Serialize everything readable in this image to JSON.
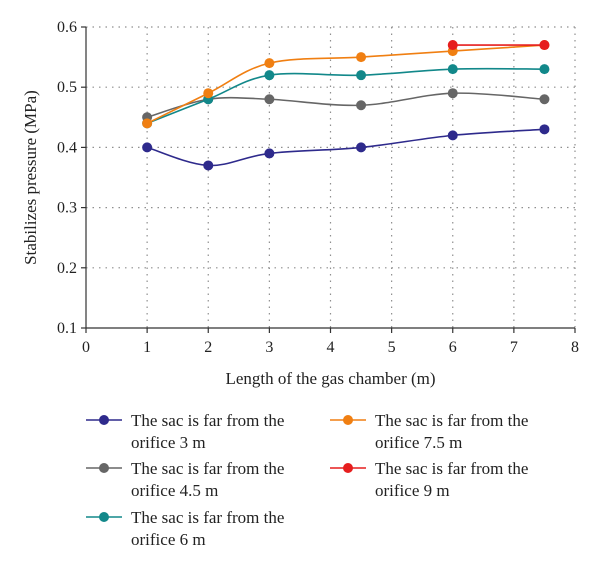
{
  "chart_data": {
    "type": "line",
    "xlabel": "Length of the gas chamber (m)",
    "ylabel": "Stabilizes pressure (MPa)",
    "xlim": [
      0,
      8
    ],
    "ylim": [
      0.1,
      0.6
    ],
    "xticks": [
      "0",
      "1",
      "2",
      "3",
      "4",
      "5",
      "6",
      "7",
      "8"
    ],
    "yticks": [
      "0.1",
      "0.2",
      "0.3",
      "0.4",
      "0.5",
      "0.6"
    ],
    "grid": true,
    "legend_position": "bottom",
    "series": [
      {
        "name": "The sac is far from the orifice 3 m",
        "color": "#2e2a8c",
        "x": [
          1,
          2,
          3,
          4.5,
          6,
          7.5
        ],
        "y": [
          0.4,
          0.37,
          0.39,
          0.4,
          0.42,
          0.43
        ]
      },
      {
        "name": "The sac is far from the orifice 4.5 m",
        "color": "#666666",
        "x": [
          1,
          2,
          3,
          4.5,
          6,
          7.5
        ],
        "y": [
          0.45,
          0.48,
          0.48,
          0.47,
          0.49,
          0.48
        ]
      },
      {
        "name": "The sac is far from the orifice 6 m",
        "color": "#12888a",
        "x": [
          1,
          2,
          3,
          4.5,
          6,
          7.5
        ],
        "y": [
          0.44,
          0.48,
          0.52,
          0.52,
          0.53,
          0.53
        ]
      },
      {
        "name": "The sac is far from the orifice 7.5 m",
        "color": "#f07f12",
        "x": [
          1,
          2,
          3,
          4.5,
          6,
          7.5
        ],
        "y": [
          0.44,
          0.49,
          0.54,
          0.55,
          0.56,
          0.57
        ]
      },
      {
        "name": "The sac is far from the orifice 9 m",
        "color": "#e61e1e",
        "x": [
          6,
          7.5
        ],
        "y": [
          0.57,
          0.57
        ]
      }
    ]
  }
}
